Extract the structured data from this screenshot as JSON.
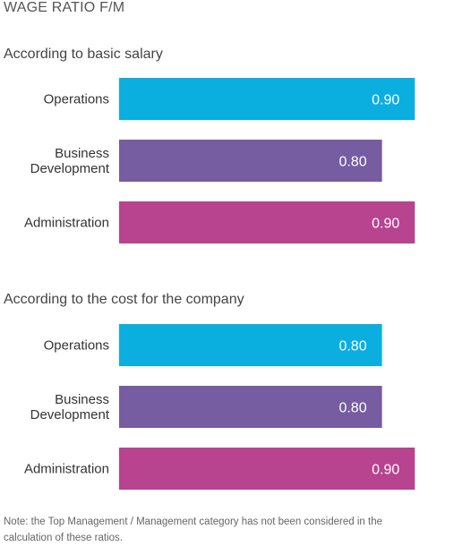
{
  "title": "WAGE RATIO F/M",
  "note": "Note: the Top Management / Management category has not been considered in the calculation of these ratios.",
  "colors": {
    "operations": "#0aafe0",
    "business_development": "#765ca1",
    "administration": "#b8438f",
    "label_text": "#ffffff",
    "category_text": "#333333"
  },
  "chart_data": [
    {
      "type": "bar",
      "orientation": "horizontal",
      "title": "According to basic salary",
      "categories": [
        [
          "Operations"
        ],
        [
          "Business",
          "Development"
        ],
        [
          "Administration"
        ]
      ],
      "values": [
        0.9,
        0.8,
        0.9
      ],
      "value_labels": [
        "0.90",
        "0.80",
        "0.90"
      ],
      "xlim": [
        0,
        1.0
      ],
      "grid": false
    },
    {
      "type": "bar",
      "orientation": "horizontal",
      "title": "According to the cost for the company",
      "categories": [
        [
          "Operations"
        ],
        [
          "Business",
          "Development"
        ],
        [
          "Administration"
        ]
      ],
      "values": [
        0.8,
        0.8,
        0.9
      ],
      "value_labels": [
        "0.80",
        "0.80",
        "0.90"
      ],
      "xlim": [
        0,
        1.0
      ],
      "grid": false
    }
  ]
}
